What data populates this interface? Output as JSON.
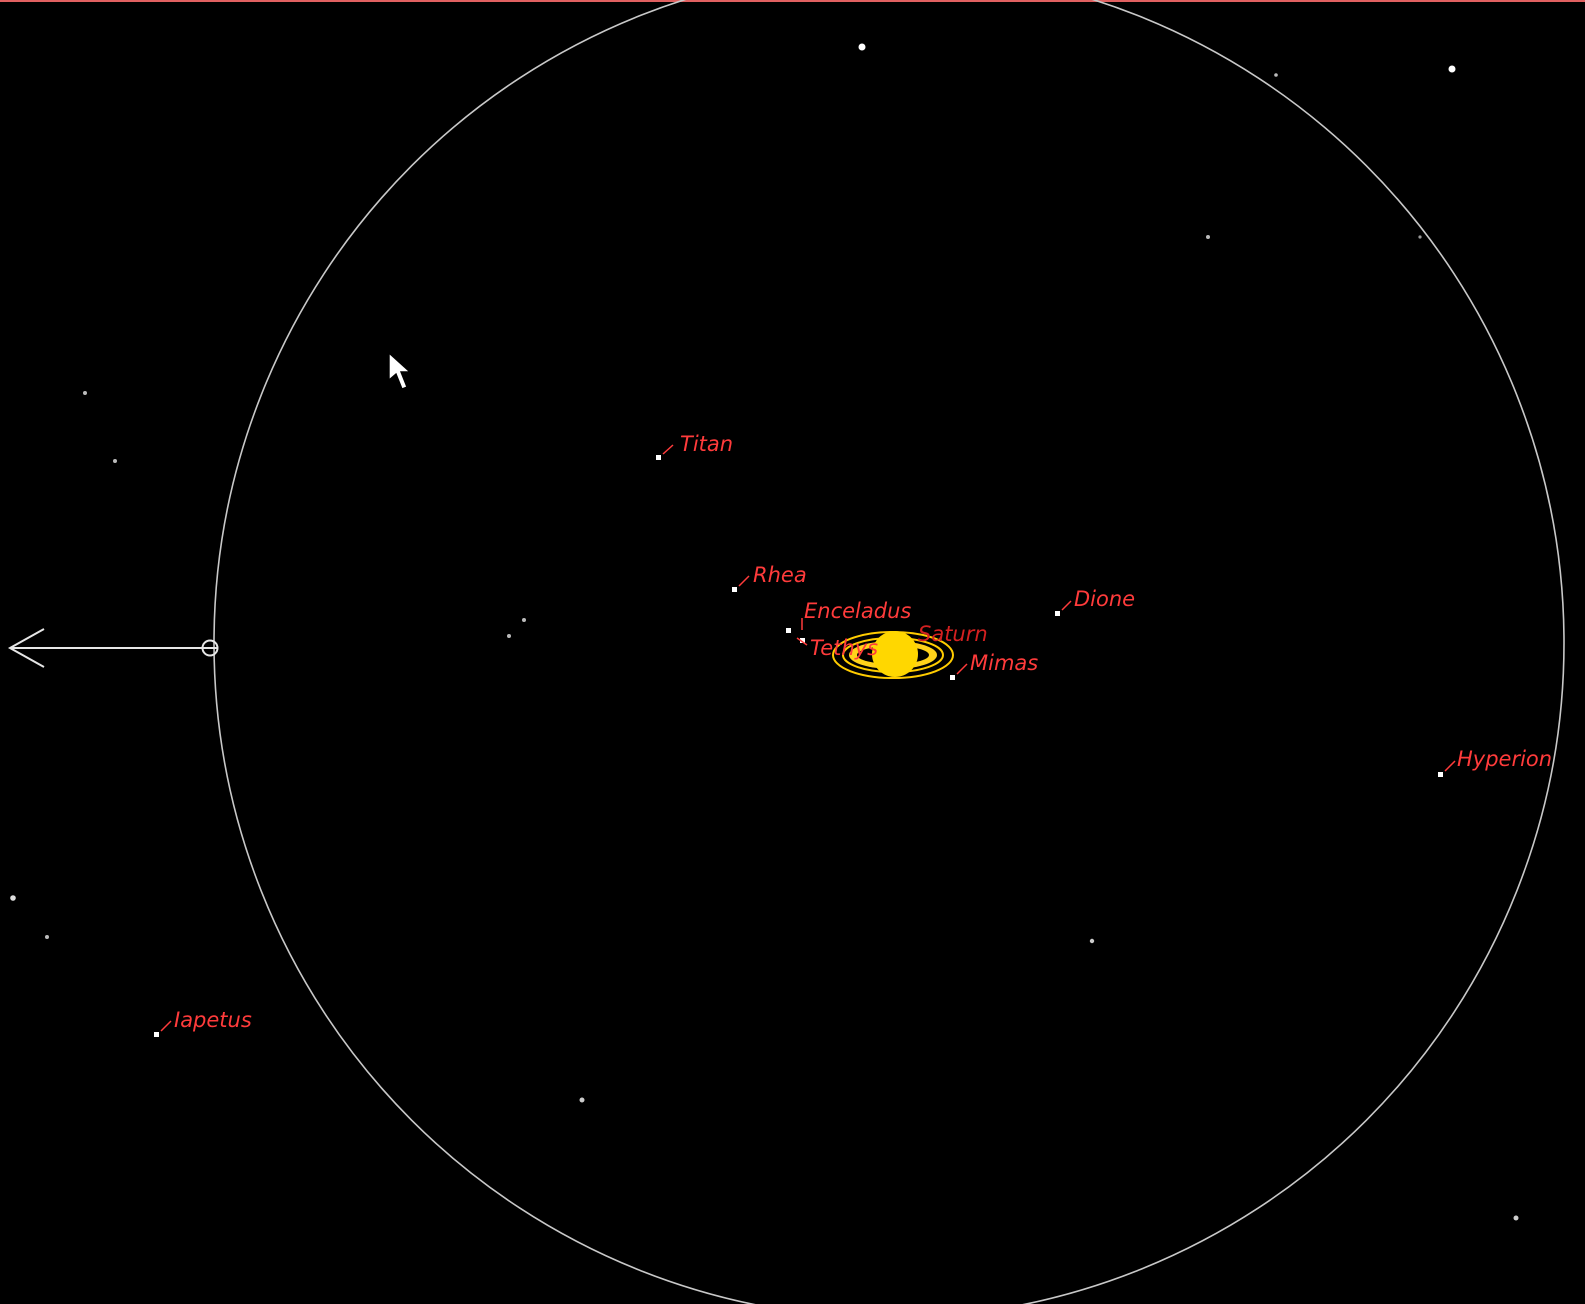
{
  "view": {
    "background": "#000000",
    "label_color": "#ff3b3b",
    "planet_color": "#ffd700",
    "ring_color": "#ffcc00",
    "star_color": "#ffffff",
    "circle_color": "#c8c8c8"
  },
  "planet": {
    "name": "Saturn"
  },
  "moons": [
    {
      "name": "Titan"
    },
    {
      "name": "Rhea"
    },
    {
      "name": "Enceladus"
    },
    {
      "name": "Tethys"
    },
    {
      "name": "Dione"
    },
    {
      "name": "Mimas"
    },
    {
      "name": "Hyperion"
    },
    {
      "name": "Iapetus"
    }
  ]
}
